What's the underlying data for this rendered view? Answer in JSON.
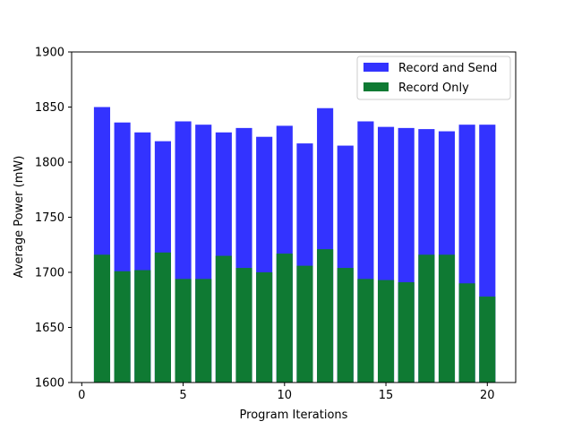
{
  "chart_data": {
    "type": "bar",
    "xlabel": "Program Iterations",
    "ylabel": "Average Power (mW)",
    "xlim": [
      -0.5,
      21.4
    ],
    "ylim": [
      1600,
      1900
    ],
    "xticks": [
      0,
      5,
      10,
      15,
      20
    ],
    "yticks": [
      1600,
      1650,
      1700,
      1750,
      1800,
      1850,
      1900
    ],
    "grid": false,
    "legend_position": "top-right",
    "x": [
      1,
      2,
      3,
      4,
      5,
      6,
      7,
      8,
      9,
      10,
      11,
      12,
      13,
      14,
      15,
      16,
      17,
      18,
      19,
      20
    ],
    "series": [
      {
        "name": "Record and Send",
        "color": "#3333ff",
        "values": [
          1850,
          1836,
          1827,
          1819,
          1837,
          1834,
          1827,
          1831,
          1823,
          1833,
          1817,
          1849,
          1815,
          1837,
          1832,
          1831,
          1830,
          1828,
          1834,
          1834
        ]
      },
      {
        "name": "Record Only",
        "color": "#0f7a33",
        "values": [
          1716,
          1701,
          1702,
          1718,
          1694,
          1694,
          1715,
          1704,
          1700,
          1717,
          1706,
          1721,
          1704,
          1694,
          1693,
          1691,
          1716,
          1716,
          1690,
          1678
        ]
      }
    ]
  }
}
